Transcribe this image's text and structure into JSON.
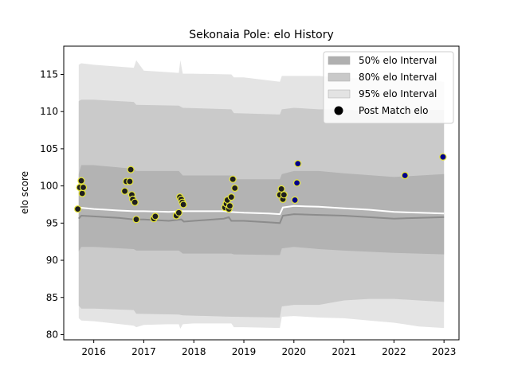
{
  "chart_data": {
    "type": "line",
    "title": "Sekonaia Pole: elo History",
    "xlabel": "",
    "ylabel": "elo score",
    "xlim": [
      2015.4,
      2023.3
    ],
    "ylim": [
      79.3,
      118.8
    ],
    "x_ticks": [
      2016,
      2017,
      2018,
      2019,
      2020,
      2021,
      2022,
      2023
    ],
    "x_tick_labels": [
      "2016",
      "2017",
      "2018",
      "2019",
      "2020",
      "2021",
      "2022",
      "2023"
    ],
    "y_ticks": [
      80,
      85,
      90,
      95,
      100,
      105,
      110,
      115
    ],
    "y_tick_labels": [
      "80",
      "85",
      "90",
      "95",
      "100",
      "105",
      "110",
      "115"
    ],
    "grid": false,
    "legend_position": "top-right",
    "legend": [
      {
        "label": "50% elo Interval",
        "kind": "band",
        "color": "#b0b0b0"
      },
      {
        "label": "80% elo Interval",
        "kind": "band",
        "color": "#c9c9c9"
      },
      {
        "label": "95% elo Interval",
        "kind": "band",
        "color": "#e3e3e3"
      },
      {
        "label": "Post Match elo",
        "kind": "marker",
        "color": "#000000"
      }
    ],
    "colors": {
      "band_50": "#b3b3b3",
      "band_80": "#cacaca",
      "band_95": "#e4e4e4",
      "mean_line": "#ffffff",
      "median_line": "#8c8c8c",
      "point_fill": "#1f1f1f",
      "point_fill_recent": "#00008b",
      "point_edge": "#e5e53a"
    },
    "mean_line": {
      "x": [
        2015.7,
        2016.0,
        2016.5,
        2016.8,
        2017.0,
        2017.5,
        2017.75,
        2018.0,
        2018.6,
        2018.7,
        2019.0,
        2019.5,
        2019.72,
        2019.78,
        2020.0,
        2020.5,
        2021.0,
        2021.5,
        2022.0,
        2022.5,
        2023.0
      ],
      "y": [
        97.1,
        96.9,
        96.7,
        96.6,
        96.6,
        96.5,
        96.6,
        96.6,
        96.6,
        96.5,
        96.4,
        96.3,
        96.2,
        97.1,
        97.3,
        97.2,
        97.0,
        96.8,
        96.5,
        96.4,
        96.3
      ]
    },
    "median_line": {
      "x": [
        2015.7,
        2015.75,
        2016.0,
        2016.5,
        2016.8,
        2017.0,
        2017.5,
        2017.75,
        2017.8,
        2018.0,
        2018.6,
        2018.7,
        2018.75,
        2019.0,
        2019.5,
        2019.72,
        2019.78,
        2020.0,
        2020.5,
        2021.0,
        2021.5,
        2022.0,
        2022.5,
        2023.0
      ],
      "y": [
        95.6,
        96.0,
        95.9,
        95.7,
        95.5,
        95.5,
        95.3,
        95.5,
        95.2,
        95.3,
        95.6,
        95.8,
        95.3,
        95.3,
        95.1,
        95.0,
        96.0,
        96.2,
        96.1,
        96.0,
        95.8,
        95.6,
        95.7,
        95.8
      ]
    },
    "band_50": {
      "x": [
        2015.7,
        2015.75,
        2016.0,
        2016.8,
        2016.85,
        2017.7,
        2017.78,
        2018.75,
        2018.8,
        2019.72,
        2019.76,
        2020.0,
        2020.5,
        2021.0,
        2022.0,
        2023.0
      ],
      "upper": [
        101.6,
        102.8,
        102.8,
        102.3,
        102.0,
        102.0,
        101.4,
        101.4,
        100.9,
        100.9,
        101.6,
        102.0,
        102.0,
        101.7,
        101.2,
        101.6
      ],
      "lower": [
        91.2,
        91.8,
        91.8,
        91.5,
        91.3,
        91.3,
        90.9,
        90.9,
        90.8,
        90.7,
        91.6,
        91.8,
        91.5,
        91.3,
        91.0,
        90.8
      ]
    },
    "band_80": {
      "x": [
        2015.7,
        2015.75,
        2016.0,
        2016.8,
        2016.85,
        2017.7,
        2017.78,
        2018.75,
        2018.8,
        2019.72,
        2019.76,
        2020.0,
        2020.5,
        2021.0,
        2021.5,
        2022.0,
        2022.5,
        2023.0
      ],
      "upper": [
        111.4,
        111.6,
        111.6,
        111.3,
        110.9,
        110.8,
        110.5,
        110.3,
        109.8,
        109.6,
        110.3,
        110.5,
        110.3,
        110.3,
        110.0,
        110.0,
        110.2,
        110.2
      ],
      "lower": [
        83.9,
        83.5,
        83.5,
        83.3,
        82.8,
        82.7,
        82.6,
        82.4,
        82.4,
        82.3,
        83.8,
        84.0,
        84.0,
        84.6,
        84.8,
        84.8,
        84.6,
        84.4
      ]
    },
    "band_95": {
      "x": [
        2015.7,
        2015.75,
        2016.0,
        2016.8,
        2016.85,
        2017.0,
        2017.5,
        2017.7,
        2017.73,
        2017.78,
        2018.0,
        2018.75,
        2018.8,
        2019.0,
        2019.72,
        2019.76,
        2020.0,
        2020.5,
        2021.0,
        2021.5,
        2022.0,
        2022.5,
        2023.0
      ],
      "upper": [
        116.3,
        116.5,
        116.3,
        115.9,
        116.9,
        115.5,
        115.3,
        115.2,
        116.9,
        115.1,
        115.1,
        115.0,
        114.6,
        114.6,
        114.0,
        114.8,
        114.8,
        114.8,
        114.5,
        114.5,
        114.5,
        114.3,
        114.0
      ],
      "lower": [
        82.2,
        81.9,
        81.8,
        81.2,
        81.0,
        81.3,
        81.4,
        81.4,
        80.8,
        81.4,
        81.5,
        81.5,
        81.0,
        81.0,
        80.9,
        82.4,
        82.5,
        82.3,
        82.2,
        81.9,
        81.6,
        81.1,
        80.9
      ]
    },
    "points": {
      "x": [
        2015.68,
        2015.72,
        2015.75,
        2015.77,
        2015.79,
        2016.62,
        2016.65,
        2016.72,
        2016.74,
        2016.76,
        2016.78,
        2016.82,
        2016.85,
        2017.2,
        2017.23,
        2017.65,
        2017.7,
        2017.72,
        2017.75,
        2017.77,
        2017.79,
        2018.62,
        2018.65,
        2018.67,
        2018.7,
        2018.72,
        2018.75,
        2018.78,
        2018.82,
        2019.72,
        2019.75,
        2019.78,
        2019.8,
        2020.02,
        2020.06,
        2020.08,
        2022.22,
        2022.98
      ],
      "y": [
        96.9,
        99.8,
        100.7,
        99.0,
        99.8,
        99.3,
        100.6,
        100.6,
        102.2,
        98.8,
        98.2,
        97.8,
        95.5,
        95.6,
        95.9,
        96.0,
        96.4,
        98.5,
        98.2,
        97.8,
        97.5,
        97.1,
        97.6,
        98.1,
        96.9,
        97.3,
        98.5,
        100.9,
        99.7,
        98.8,
        99.6,
        98.2,
        98.8,
        98.1,
        100.4,
        103.0,
        101.4,
        103.9
      ],
      "recent_from_index": 33
    }
  }
}
